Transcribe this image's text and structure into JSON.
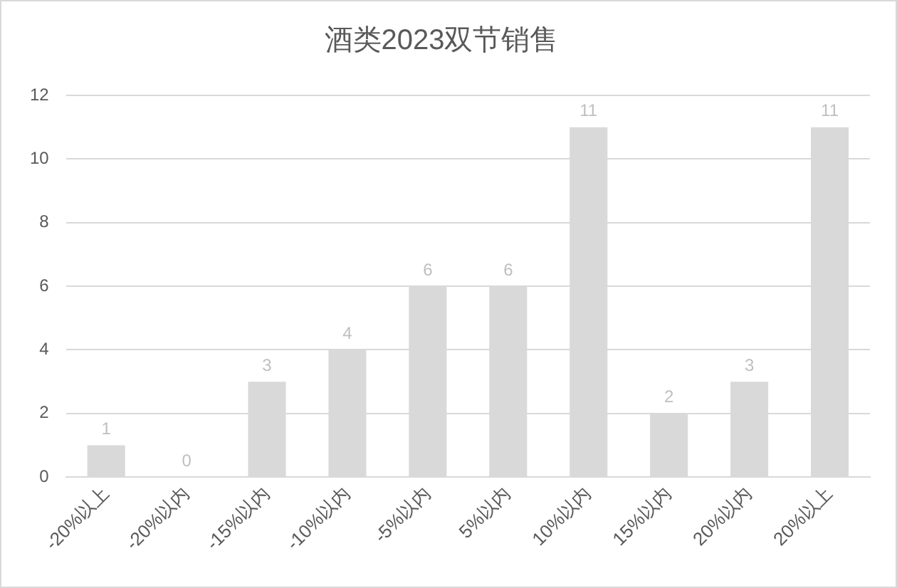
{
  "chart_data": {
    "type": "bar",
    "title": "酒类2023双节销售",
    "categories": [
      "-20%以上",
      "-20%以内",
      "-15%以内",
      "-10%以内",
      "-5%以内",
      "5%以内",
      "10%以内",
      "15%以内",
      "20%以内",
      "20%以上"
    ],
    "values": [
      1,
      0,
      3,
      4,
      6,
      6,
      11,
      2,
      3,
      11
    ],
    "color": "#d9d9d9",
    "ylim": [
      0,
      12
    ],
    "yticks": [
      0,
      2,
      4,
      6,
      8,
      10,
      12
    ],
    "grid": "y",
    "data_labels": true,
    "legend": false
  }
}
